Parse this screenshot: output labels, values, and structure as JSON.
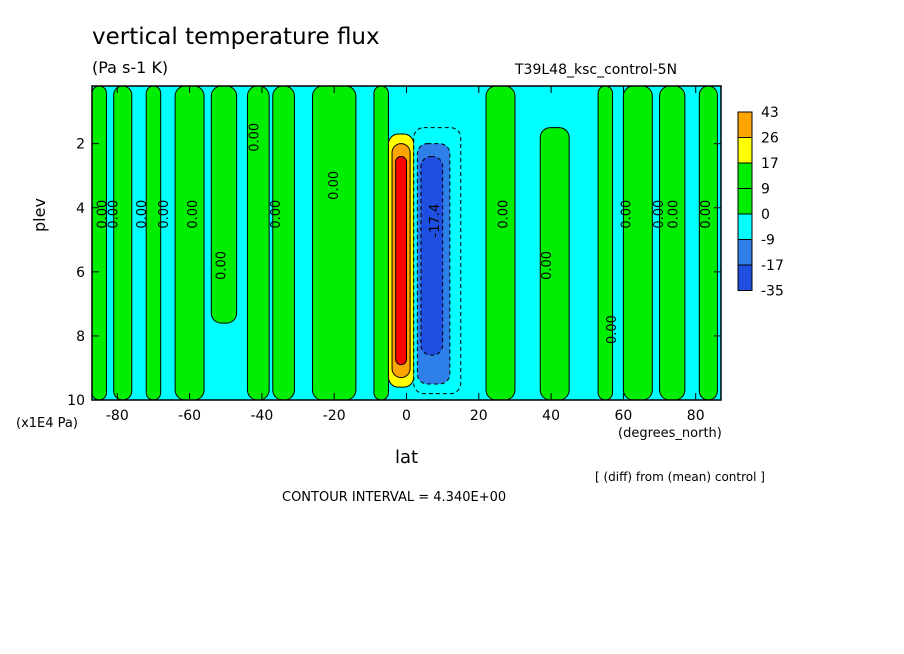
{
  "title": "vertical temperature flux",
  "units": "(Pa s-1 K)",
  "experiment": "T39L48_ksc_control-5N",
  "note": "[ (diff) from (mean) control ]",
  "contour_interval_text": "CONTOUR INTERVAL = 4.340E+00",
  "colors": {
    "c35": "#1f4fe0",
    "c17": "#2f7fe8",
    "c9": "#00ffff",
    "c0": "#00ee00",
    "p9": "#ffff00",
    "p17": "#ffa500",
    "p26": "#ff0000",
    "frame": "#000000"
  },
  "chart_data": {
    "type": "heatmap",
    "title": "vertical temperature flux",
    "xlabel": "lat",
    "xunit": "(degrees_north)",
    "ylabel": "plev",
    "yunit": "(x1E4 Pa)",
    "xlim": [
      -87,
      87
    ],
    "ylim": [
      10,
      0.2
    ],
    "xticks": [
      -80,
      -60,
      -40,
      -20,
      0,
      20,
      40,
      60,
      80
    ],
    "xtick_labels": [
      "-80",
      "-60",
      "-40",
      "-20",
      "0",
      "20",
      "40",
      "60",
      "80"
    ],
    "yticks": [
      2,
      4,
      6,
      8,
      10
    ],
    "ytick_labels": [
      "2",
      "4",
      "6",
      "8",
      "10"
    ],
    "colorbar_levels": [
      "43",
      "26",
      "17",
      "9",
      "0",
      "-9",
      "-17",
      "-35"
    ],
    "contour_labels": [
      {
        "text": "0.00",
        "x": -83,
        "y": 4.2
      },
      {
        "text": "0.00",
        "x": -80,
        "y": 4.2
      },
      {
        "text": "0.00",
        "x": -72,
        "y": 4.2
      },
      {
        "text": "0.00",
        "x": -66,
        "y": 4.2
      },
      {
        "text": "0.00",
        "x": -58,
        "y": 4.2
      },
      {
        "text": "0.00",
        "x": -50,
        "y": 5.8
      },
      {
        "text": "0.00",
        "x": -41,
        "y": 1.8
      },
      {
        "text": "0.00",
        "x": -35,
        "y": 4.2
      },
      {
        "text": "0.00",
        "x": -19,
        "y": 3.3
      },
      {
        "text": "0.00",
        "x": 28,
        "y": 4.2
      },
      {
        "text": "0.00",
        "x": 40,
        "y": 5.8
      },
      {
        "text": "0.00",
        "x": 58,
        "y": 7.8
      },
      {
        "text": "0.00",
        "x": 62,
        "y": 4.2
      },
      {
        "text": "0.00",
        "x": 71,
        "y": 4.2
      },
      {
        "text": "0.00",
        "x": 75,
        "y": 4.2
      },
      {
        "text": "0.00",
        "x": 84,
        "y": 4.2
      },
      {
        "text": "-17.4",
        "x": 9,
        "y": 4.4
      }
    ],
    "regions": [
      {
        "x": [
          -87,
          87
        ],
        "p": [
          0.2,
          10
        ],
        "value": -2
      },
      {
        "x": [
          -87,
          -83
        ],
        "p": [
          0.2,
          10
        ],
        "value": 2
      },
      {
        "x": [
          -81,
          -76
        ],
        "p": [
          0.2,
          10
        ],
        "value": 2
      },
      {
        "x": [
          -72,
          -68
        ],
        "p": [
          0.2,
          10
        ],
        "value": 2
      },
      {
        "x": [
          -64,
          -56
        ],
        "p": [
          0.2,
          10
        ],
        "value": 2
      },
      {
        "x": [
          -54,
          -47
        ],
        "p": [
          0.2,
          7.6
        ],
        "value": 2
      },
      {
        "x": [
          -44,
          -38
        ],
        "p": [
          0.2,
          10
        ],
        "value": 2
      },
      {
        "x": [
          -37,
          -31
        ],
        "p": [
          0.2,
          10
        ],
        "value": 2
      },
      {
        "x": [
          -26,
          -14
        ],
        "p": [
          0.2,
          10
        ],
        "value": 2
      },
      {
        "x": [
          -9,
          -5
        ],
        "p": [
          0.2,
          10
        ],
        "value": 2
      },
      {
        "x": [
          22,
          30
        ],
        "p": [
          0.2,
          10
        ],
        "value": 2
      },
      {
        "x": [
          37,
          45
        ],
        "p": [
          1.5,
          10
        ],
        "value": 2
      },
      {
        "x": [
          53,
          57
        ],
        "p": [
          0.2,
          10
        ],
        "value": 2
      },
      {
        "x": [
          60,
          68
        ],
        "p": [
          0.2,
          10
        ],
        "value": 2
      },
      {
        "x": [
          70,
          77
        ],
        "p": [
          0.2,
          10
        ],
        "value": 2
      },
      {
        "x": [
          81,
          86
        ],
        "p": [
          0.2,
          10
        ],
        "value": 2
      },
      {
        "x": [
          -5,
          2
        ],
        "p": [
          1.7,
          9.6
        ],
        "value": 12
      },
      {
        "x": [
          -4,
          1
        ],
        "p": [
          2.0,
          9.3
        ],
        "value": 20
      },
      {
        "x": [
          -3,
          0
        ],
        "p": [
          2.4,
          8.9
        ],
        "value": 30
      },
      {
        "x": [
          2,
          15
        ],
        "p": [
          1.5,
          9.8
        ],
        "value": -4
      },
      {
        "x": [
          3,
          12
        ],
        "p": [
          2.0,
          9.5
        ],
        "value": -12
      },
      {
        "x": [
          4,
          10
        ],
        "p": [
          2.4,
          8.6
        ],
        "value": -25
      }
    ]
  }
}
